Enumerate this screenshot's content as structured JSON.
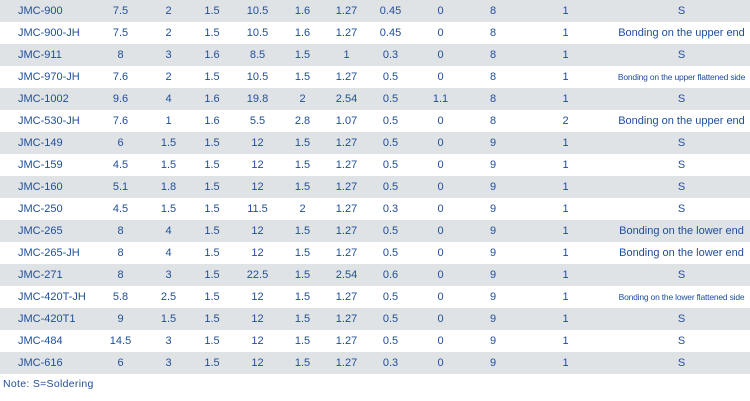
{
  "rows": [
    [
      "JMC-900",
      "7.5",
      "2",
      "1.5",
      "10.5",
      "1.6",
      "1.27",
      "0.45",
      "0",
      "8",
      "1",
      "S"
    ],
    [
      "JMC-900-JH",
      "7.5",
      "2",
      "1.5",
      "10.5",
      "1.6",
      "1.27",
      "0.45",
      "0",
      "8",
      "1",
      "Bonding on the upper end"
    ],
    [
      "JMC-911",
      "8",
      "3",
      "1.6",
      "8.5",
      "1.5",
      "1",
      "0.3",
      "0",
      "8",
      "1",
      "S"
    ],
    [
      "JMC-970-JH",
      "7.6",
      "2",
      "1.5",
      "10.5",
      "1.5",
      "1.27",
      "0.5",
      "0",
      "8",
      "1",
      "Bonding on the upper flattened side"
    ],
    [
      "JMC-1002",
      "9.6",
      "4",
      "1.6",
      "19.8",
      "2",
      "2.54",
      "0.5",
      "1.1",
      "8",
      "1",
      "S"
    ],
    [
      "JMC-530-JH",
      "7.6",
      "1",
      "1.6",
      "5.5",
      "2.8",
      "1.07",
      "0.5",
      "0",
      "8",
      "2",
      "Bonding on the upper end"
    ],
    [
      "JMC-149",
      "6",
      "1.5",
      "1.5",
      "12",
      "1.5",
      "1.27",
      "0.5",
      "0",
      "9",
      "1",
      "S"
    ],
    [
      "JMC-159",
      "4.5",
      "1.5",
      "1.5",
      "12",
      "1.5",
      "1.27",
      "0.5",
      "0",
      "9",
      "1",
      "S"
    ],
    [
      "JMC-160",
      "5.1",
      "1.8",
      "1.5",
      "12",
      "1.5",
      "1.27",
      "0.5",
      "0",
      "9",
      "1",
      "S"
    ],
    [
      "JMC-250",
      "4.5",
      "1.5",
      "1.5",
      "11.5",
      "2",
      "1.27",
      "0.3",
      "0",
      "9",
      "1",
      "S"
    ],
    [
      "JMC-265",
      "8",
      "4",
      "1.5",
      "12",
      "1.5",
      "1.27",
      "0.5",
      "0",
      "9",
      "1",
      "Bonding on the lower end"
    ],
    [
      "JMC-265-JH",
      "8",
      "4",
      "1.5",
      "12",
      "1.5",
      "1.27",
      "0.5",
      "0",
      "9",
      "1",
      "Bonding on the lower end"
    ],
    [
      "JMC-271",
      "8",
      "3",
      "1.5",
      "22.5",
      "1.5",
      "2.54",
      "0.6",
      "0",
      "9",
      "1",
      "S"
    ],
    [
      "JMC-420T-JH",
      "5.8",
      "2.5",
      "1.5",
      "12",
      "1.5",
      "1.27",
      "0.5",
      "0",
      "9",
      "1",
      "Bonding on the lower flattened side"
    ],
    [
      "JMC-420T1",
      "9",
      "1.5",
      "1.5",
      "12",
      "1.5",
      "1.27",
      "0.5",
      "0",
      "9",
      "1",
      "S"
    ],
    [
      "JMC-484",
      "14.5",
      "3",
      "1.5",
      "12",
      "1.5",
      "1.27",
      "0.5",
      "0",
      "9",
      "1",
      "S"
    ],
    [
      "JMC-616",
      "6",
      "3",
      "1.5",
      "12",
      "1.5",
      "1.27",
      "0.3",
      "0",
      "9",
      "1",
      "S"
    ]
  ],
  "note": "Note: S=Soldering"
}
